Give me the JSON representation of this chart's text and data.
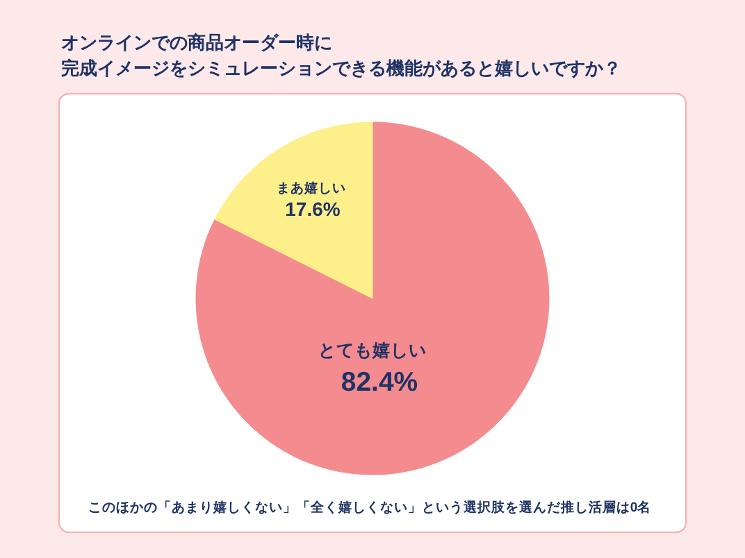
{
  "chart_data": {
    "type": "pie",
    "title": "オンラインでの商品オーダー時に",
    "subtitle": "完成イメージをシミュレーションできる機能があると嬉しいですか？",
    "categories": [
      "とても嬉しい",
      "まあ嬉しい"
    ],
    "values": [
      82.4,
      17.6
    ],
    "value_labels": [
      "82.4%",
      "17.6%"
    ],
    "colors": [
      "#f38b8f",
      "#fdf08b"
    ],
    "annotations": [
      "このほかの「あまり嬉しくない」「全く嬉しくない」という選択肢を選んだ推し活層は0名"
    ]
  }
}
